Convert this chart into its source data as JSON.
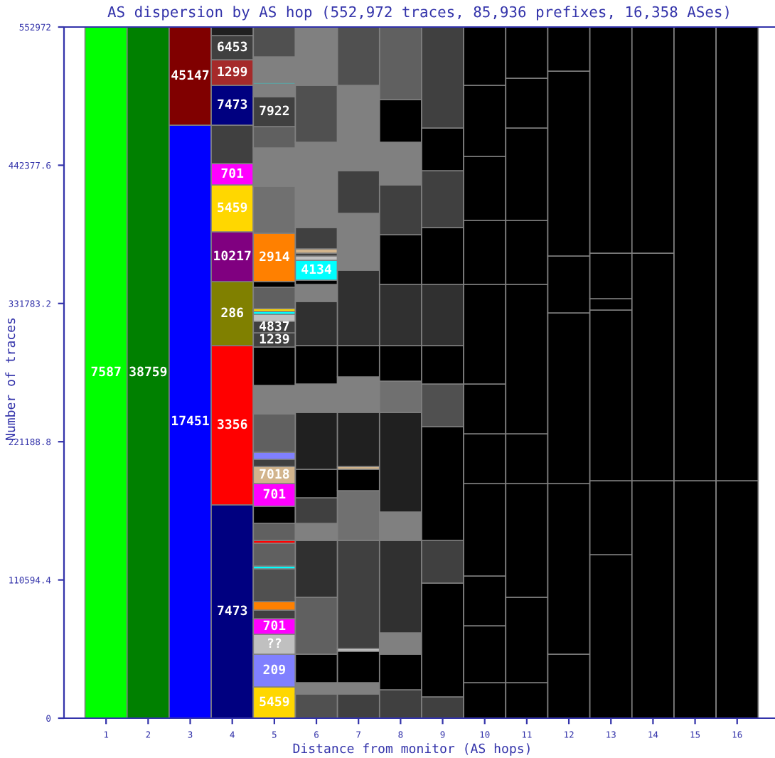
{
  "chart_data": {
    "type": "bar",
    "title": "AS dispersion by AS hop (552,972 traces, 85,936 prefixes, 16,358 ASes)",
    "xlabel": "Distance from monitor (AS hops)",
    "ylabel": "Number of traces",
    "categories": [
      "1",
      "2",
      "3",
      "4",
      "5",
      "6",
      "7",
      "8",
      "9",
      "10",
      "11",
      "12",
      "13",
      "14",
      "15",
      "16"
    ],
    "ylim": [
      0,
      552972
    ],
    "yticks": [
      0,
      110594.4,
      221188.8,
      331783.2,
      442377.6,
      552972
    ],
    "annotations": [
      {
        "text": "286",
        "x": "4",
        "y": 349304
      },
      {
        "text": "10217",
        "x": "4",
        "y": 389127
      },
      {
        "text": "5459",
        "x": "4",
        "y": 426674
      },
      {
        "text": "701",
        "x": "4",
        "y": 443741
      },
      {
        "text": "7473",
        "x": "4",
        "y": 506319
      },
      {
        "text": "1299",
        "x": "4",
        "y": 526799
      },
      {
        "text": "6453",
        "x": "4",
        "y": 546142
      },
      {
        "text": "5459",
        "x": "5",
        "y": 25032
      },
      {
        "text": "209",
        "x": "5",
        "y": 51202
      },
      {
        "text": "??",
        "x": "5",
        "y": 67131
      },
      {
        "text": "701",
        "x": "5",
        "y": 79647
      },
      {
        "text": "701",
        "x": "5",
        "y": 187741
      },
      {
        "text": "7018",
        "x": "5",
        "y": 201395
      },
      {
        "text": "1239",
        "x": "5",
        "y": 308347
      },
      {
        "text": "4837",
        "x": "5",
        "y": 317449
      },
      {
        "text": "2914",
        "x": "5",
        "y": 387993
      },
      {
        "text": "7922",
        "x": "5",
        "y": 497221
      },
      {
        "text": "4134",
        "x": "6",
        "y": 366371
      }
    ],
    "grid": false,
    "legend": false,
    "series": [
      {
        "name": "7587",
        "x": [
          "1"
        ],
        "base": [
          0
        ],
        "values": [
          552972
        ],
        "colors": [
          "#00ff00"
        ]
      },
      {
        "name": "38759",
        "x": [
          "2"
        ],
        "base": [
          0
        ],
        "values": [
          552972
        ],
        "colors": [
          "#008000"
        ]
      },
      {
        "name": "17451",
        "x": [
          "3"
        ],
        "base": [
          0
        ],
        "values": [
          474460
        ],
        "colors": [
          "#0000ff"
        ]
      },
      {
        "name": "45147",
        "x": [
          "3"
        ],
        "base": [
          474460
        ],
        "values": [
          78512
        ],
        "colors": [
          "#800000"
        ]
      },
      {
        "name": "7473",
        "x": [
          "4"
        ],
        "base": [
          0
        ],
        "values": [
          170670
        ],
        "colors": [
          "#000080"
        ]
      },
      {
        "name": "3356",
        "x": [
          "4"
        ],
        "base": [
          170670
        ],
        "values": [
          127434
        ],
        "colors": [
          "#ff0000"
        ]
      },
      {
        "x": [
          "4",
          "4",
          "4",
          "4",
          "4",
          "4",
          "4",
          "4",
          "4"
        ],
        "base": [
          298104,
          349304,
          389127,
          426674,
          443741,
          474461,
          506319,
          526799,
          546142
        ],
        "values": [
          51200,
          39823,
          37547,
          17067,
          30720,
          31858,
          20480,
          19343,
          6830
        ],
        "colors": [
          "#808000",
          "#800080",
          "#ffd700",
          "#ff00ff",
          "#404040",
          "#000080",
          "#a52a2a",
          "#404040",
          "#202020"
        ]
      },
      {
        "x": [
          "5",
          "5",
          "5",
          "5",
          "5",
          "5",
          "5",
          "5",
          "5",
          "5",
          "5",
          "5",
          "5",
          "5",
          "5",
          "5",
          "5",
          "5",
          "5",
          "5",
          "5",
          "5",
          "5",
          "5",
          "5",
          "5",
          "5",
          "5",
          "5",
          "5",
          "5",
          "5",
          "5",
          "5",
          "5"
        ],
        "base": [
          0,
          25032,
          51202,
          67131,
          79647,
          86474,
          93301,
          119471,
          121747,
          139952,
          142228,
          155882,
          169536,
          187741,
          201395,
          207084,
          212773,
          243493,
          266249,
          296969,
          308347,
          317449,
          323138,
          325414,
          327690,
          344757,
          349308,
          387993,
          425540,
          456260,
          473327,
          497221,
          507461,
          508599,
          529079
        ],
        "values": [
          25032,
          26170,
          15929,
          12516,
          6827,
          6827,
          26170,
          2276,
          18205,
          2276,
          13654,
          13654,
          18205,
          13654,
          5689,
          5689,
          30720,
          22756,
          30720,
          11378,
          9102,
          5689,
          2276,
          2276,
          17067,
          4551,
          38685,
          37547,
          30720,
          17067,
          23894,
          10240,
          1138,
          20480,
          23893
        ],
        "colors": [
          "#ffd700",
          "#8080ff",
          "#c0c0c0",
          "#ff00ff",
          "#404040",
          "#ff8000",
          "#505050",
          "#00ffff",
          "#606060",
          "#ff0000",
          "#606060",
          "#000000",
          "#ff00ff",
          "#d2b48c",
          "#404040",
          "#8080ff",
          "#606060",
          "#808080",
          "#000000",
          "#404040",
          "#404040",
          "#c0c0c0",
          "#00ffff",
          "#ffd700",
          "#606060",
          "#000000",
          "#ff8000",
          "#707070",
          "#808080",
          "#606060",
          "#404040",
          "#808080",
          "#00ffff",
          "#808080",
          "#505050"
        ]
      },
      {
        "x": [
          "6",
          "6",
          "6",
          "6",
          "6",
          "6",
          "6",
          "6",
          "6",
          "6",
          "6",
          "6",
          "6",
          "6",
          "6",
          "6",
          "6",
          "6",
          "6",
          "6",
          "6",
          "6"
        ],
        "base": [
          0,
          19343,
          28445,
          51201,
          96713,
          142225,
          155879,
          176359,
          199115,
          244627,
          267383,
          298103,
          333375,
          347029,
          350442,
          366371,
          369784,
          372060,
          375473,
          392540,
          460808,
          506320
        ],
        "values": [
          19343,
          9102,
          22756,
          45512,
          45512,
          13654,
          20480,
          22756,
          45512,
          22756,
          30720,
          35272,
          13654,
          3413,
          15929,
          3413,
          2276,
          3413,
          17067,
          68268,
          45512,
          46652
        ],
        "colors": [
          "#505050",
          "#808080",
          "#000000",
          "#606060",
          "#303030",
          "#808080",
          "#404040",
          "#000000",
          "#202020",
          "#808080",
          "#000000",
          "#303030",
          "#808080",
          "#000000",
          "#00ffff",
          "#c0c0c0",
          "#404040",
          "#d2b48c",
          "#404040",
          "#808080",
          "#505050",
          "#808080"
        ]
      },
      {
        "x": [
          "7",
          "7",
          "7",
          "7",
          "7",
          "7",
          "7",
          "7",
          "7",
          "7",
          "7",
          "7",
          "7",
          "7",
          "7",
          "7"
        ],
        "base": [
          0,
          19343,
          28445,
          53477,
          55753,
          142226,
          182049,
          199116,
          201392,
          244628,
          273073,
          298105,
          358408,
          403920,
          438054,
          506322
        ],
        "values": [
          19343,
          9102,
          25032,
          2276,
          86473,
          39823,
          17067,
          2276,
          43236,
          28445,
          25032,
          60303,
          45512,
          34134,
          68268,
          46650
        ],
        "colors": [
          "#404040",
          "#808080",
          "#000000",
          "#c0c0c0",
          "#404040",
          "#707070",
          "#000000",
          "#d2b48c",
          "#202020",
          "#808080",
          "#000000",
          "#303030",
          "#808080",
          "#404040",
          "#808080",
          "#505050"
        ]
      },
      {
        "x": [
          "8",
          "8",
          "8",
          "8",
          "8",
          "8",
          "8",
          "8",
          "8",
          "8",
          "8",
          "8",
          "8",
          "8"
        ],
        "base": [
          0,
          22756,
          51201,
          68268,
          142225,
          164981,
          244627,
          269659,
          298104,
          347029,
          386852,
          426675,
          460809,
          494943
        ],
        "values": [
          22756,
          28445,
          17067,
          73957,
          22756,
          79646,
          25032,
          28445,
          48925,
          39823,
          39823,
          34134,
          34134,
          58029
        ],
        "colors": [
          "#404040",
          "#000000",
          "#808080",
          "#303030",
          "#808080",
          "#202020",
          "#707070",
          "#000000",
          "#303030",
          "#000000",
          "#404040",
          "#808080",
          "#000000",
          "#606060"
        ]
      },
      {
        "x": [
          "9",
          "9",
          "9",
          "9",
          "9",
          "9",
          "9",
          "9",
          "9",
          "9",
          "9"
        ],
        "base": [
          0,
          17067,
          108091,
          142225,
          233249,
          267383,
          298103,
          347028,
          392540,
          438052,
          472186
        ],
        "values": [
          17067,
          91024,
          34134,
          91024,
          34134,
          30720,
          48925,
          45512,
          45512,
          34134,
          80786
        ],
        "colors": [
          "#404040",
          "#000000",
          "#404040",
          "#000000",
          "#505050",
          "#000000",
          "#303030",
          "#000000",
          "#404040",
          "#000000",
          "#404040"
        ]
      },
      {
        "x": [
          "10",
          "10",
          "10",
          "10",
          "10",
          "10",
          "10",
          "10",
          "10",
          "10",
          "10"
        ],
        "base": [
          0,
          28445,
          73957,
          113780,
          187737,
          227560,
          267383,
          347029,
          398230,
          449431,
          506321
        ],
        "values": [
          28445,
          45512,
          39823,
          73957,
          39823,
          39823,
          79646,
          51201,
          51201,
          56890,
          46651
        ],
        "colors": [
          "#000000",
          "#000000",
          "#000000",
          "#000000",
          "#000000",
          "#000000",
          "#000000",
          "#000000",
          "#000000",
          "#000000",
          "#000000"
        ]
      },
      {
        "x": [
          "11",
          "11",
          "11",
          "11",
          "11",
          "11",
          "11",
          "11",
          "11"
        ],
        "base": [
          0,
          28445,
          96713,
          187737,
          227560,
          347029,
          398230,
          472187,
          512010
        ],
        "values": [
          28445,
          68268,
          91024,
          39823,
          119469,
          51201,
          73957,
          39823,
          40962
        ],
        "colors": [
          "#000000",
          "#000000",
          "#000000",
          "#000000",
          "#000000",
          "#000000",
          "#000000",
          "#000000",
          "#000000"
        ]
      },
      {
        "x": [
          "12",
          "12",
          "12",
          "12",
          "12",
          "12"
        ],
        "base": [
          0,
          51201,
          187736,
          324271,
          369783,
          517696
        ],
        "values": [
          51201,
          136535,
          136535,
          45512,
          147913,
          35276
        ],
        "colors": [
          "#000000",
          "#000000",
          "#000000",
          "#000000",
          "#000000",
          "#000000"
        ]
      },
      {
        "x": [
          "13",
          "13",
          "13",
          "13",
          "13",
          "13"
        ],
        "base": [
          0,
          130846,
          190012,
          326547,
          335649,
          372059
        ],
        "values": [
          130846,
          59166,
          136535,
          9102,
          36410,
          180913
        ],
        "colors": [
          "#000000",
          "#000000",
          "#000000",
          "#000000",
          "#000000",
          "#000000"
        ]
      },
      {
        "x": [
          "14",
          "14",
          "14"
        ],
        "base": [
          0,
          190013,
          372062
        ],
        "values": [
          190013,
          182049,
          180910
        ],
        "colors": [
          "#000000",
          "#000000",
          "#000000"
        ]
      },
      {
        "x": [
          "15",
          "15"
        ],
        "base": [
          0,
          190013
        ],
        "values": [
          190013,
          362959
        ],
        "colors": [
          "#000000",
          "#000000"
        ]
      },
      {
        "x": [
          "16",
          "16"
        ],
        "base": [
          0,
          190013
        ],
        "values": [
          190013,
          362959
        ],
        "colors": [
          "#000000",
          "#000000"
        ]
      }
    ]
  }
}
